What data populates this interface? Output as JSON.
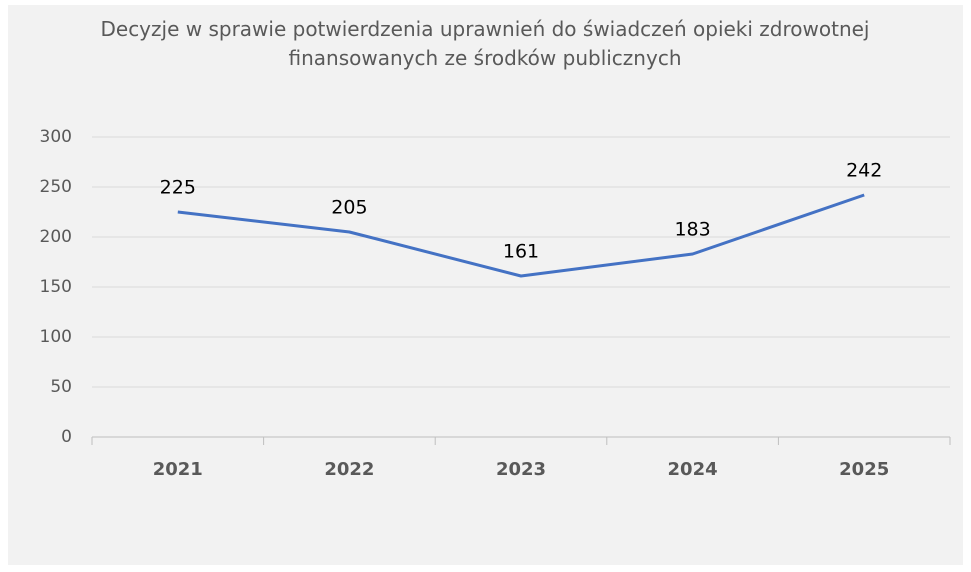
{
  "chart_data": {
    "type": "line",
    "title": "Decyzje w sprawie potwierdzenia uprawnień do świadczeń opieki zdrowotnej finansowanych ze środków publicznych",
    "categories": [
      "2021",
      "2022",
      "2023",
      "2024",
      "2025"
    ],
    "values": [
      225,
      205,
      161,
      183,
      242
    ],
    "color": "#4472c4",
    "ylim": [
      0,
      300
    ],
    "yticks": [
      0,
      50,
      100,
      150,
      200,
      250,
      300
    ],
    "grid": true
  }
}
